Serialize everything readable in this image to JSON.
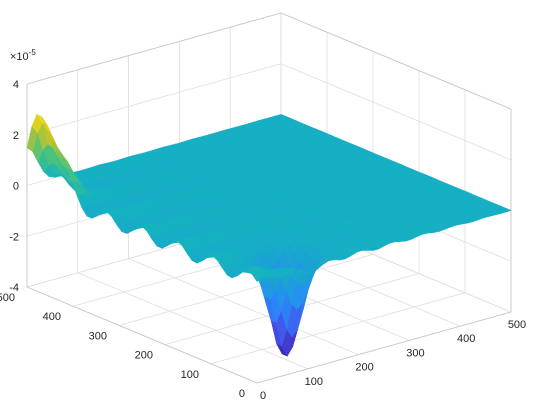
{
  "chart_data": {
    "type": "surface",
    "title": "",
    "xlabel": "",
    "ylabel": "",
    "zlabel": "",
    "exponent_label": "×10",
    "exponent_power": "-5",
    "x_ticks": [
      "0",
      "100",
      "200",
      "300",
      "400",
      "500"
    ],
    "y_ticks": [
      "0",
      "100",
      "200",
      "300",
      "400",
      "500"
    ],
    "z_ticks": [
      "4",
      "2",
      "0",
      "-2",
      "-4"
    ],
    "xlim": [
      0,
      500
    ],
    "ylim": [
      0,
      500
    ],
    "zlim": [
      -4,
      4
    ],
    "z_scale": "1e-5",
    "grid": true,
    "colormap": "parula",
    "features": [
      {
        "name": "peak",
        "x": 0,
        "y": 460,
        "z": 3.0
      },
      {
        "name": "trough",
        "x": 110,
        "y": 60,
        "z": -3.9
      }
    ]
  },
  "colors": {
    "surface_base": "#1ca0d6",
    "peak": "#f9e31c",
    "trough": "#3e26a8",
    "grid": "#dedede",
    "axis_text": "#262626"
  }
}
